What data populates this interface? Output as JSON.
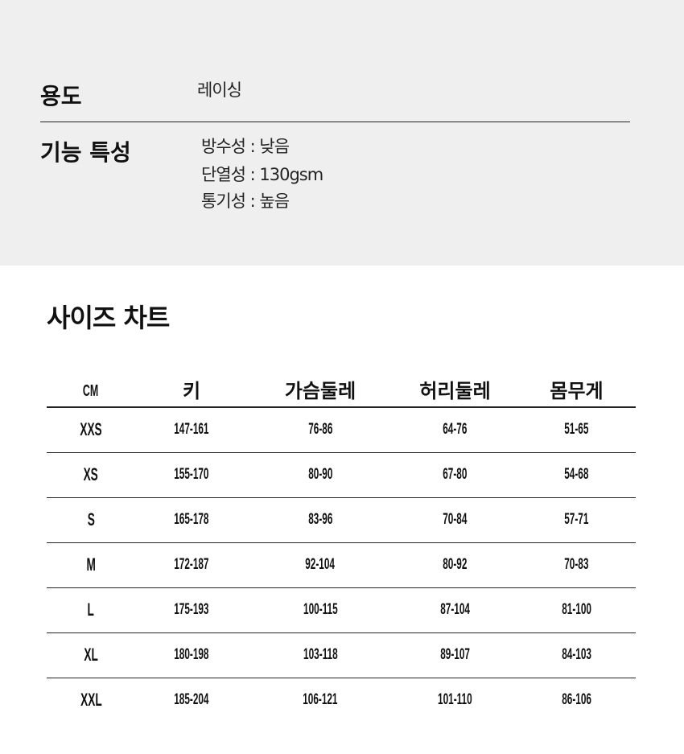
{
  "spec": {
    "usage_label": "용도",
    "usage_value": "레이싱",
    "features_label": "기능 특성",
    "features": [
      "방수성 : 낮음",
      "단열성 : 130gsm",
      "통기성 : 높음"
    ]
  },
  "size_chart": {
    "title": "사이즈 차트",
    "headers": [
      "CM",
      "키",
      "가슴둘레",
      "허리둘레",
      "몸무게"
    ],
    "rows": [
      [
        "XXS",
        "147-161",
        "76-86",
        "64-76",
        "51-65"
      ],
      [
        "XS",
        "155-170",
        "80-90",
        "67-80",
        "54-68"
      ],
      [
        "S",
        "165-178",
        "83-96",
        "70-84",
        "57-71"
      ],
      [
        "M",
        "172-187",
        "92-104",
        "80-92",
        "70-83"
      ],
      [
        "L",
        "175-193",
        "100-115",
        "87-104",
        "81-100"
      ],
      [
        "XL",
        "180-198",
        "103-118",
        "89-107",
        "84-103"
      ],
      [
        "XXL",
        "185-204",
        "106-121",
        "101-110",
        "86-106"
      ]
    ]
  }
}
